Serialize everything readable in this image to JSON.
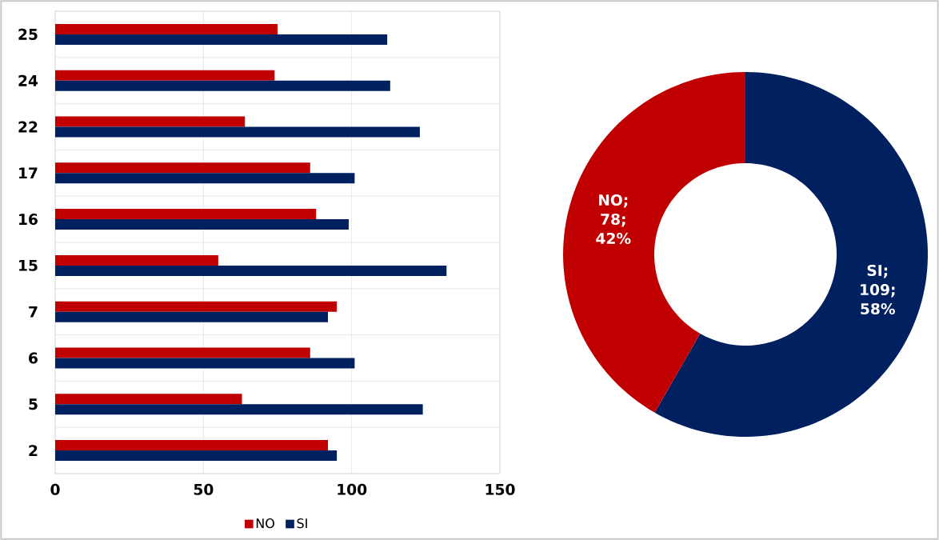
{
  "chart_data": [
    {
      "type": "bar",
      "orientation": "horizontal",
      "categories": [
        "25",
        "24",
        "22",
        "17",
        "16",
        "15",
        "7",
        "6",
        "5",
        "2"
      ],
      "series": [
        {
          "name": "NO",
          "color": "#c00000",
          "values": [
            75,
            74,
            64,
            86,
            88,
            55,
            95,
            86,
            63,
            92
          ]
        },
        {
          "name": "SI",
          "color": "#002060",
          "values": [
            112,
            113,
            123,
            101,
            99,
            132,
            92,
            101,
            124,
            95
          ]
        }
      ],
      "xlim": [
        0,
        150
      ],
      "xticks": [
        0,
        50,
        100,
        150
      ],
      "grid": true,
      "legend": "bottom"
    },
    {
      "type": "donut",
      "categories": [
        "SI",
        "NO"
      ],
      "values": [
        109,
        78
      ],
      "colors": [
        "#002060",
        "#c00000"
      ],
      "value_labels": [
        "; 109; 58%",
        "; 78; 42%"
      ]
    }
  ]
}
